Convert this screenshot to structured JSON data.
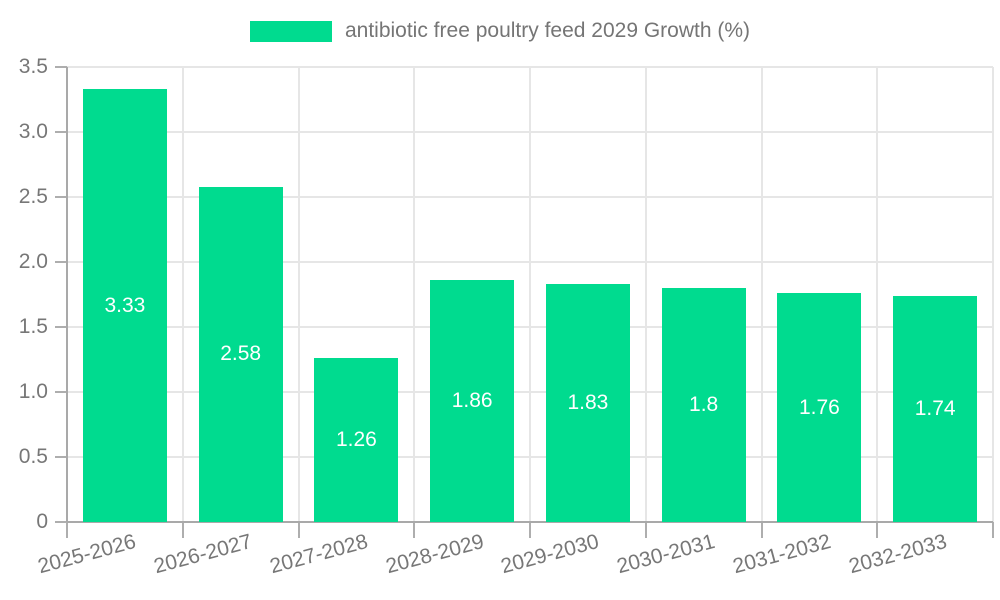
{
  "chart_data": {
    "type": "bar",
    "legend_label": "antibiotic free poultry feed 2029 Growth (%)",
    "legend_position": "top-center",
    "categories": [
      "2025-2026",
      "2026-2027",
      "2027-2028",
      "2028-2029",
      "2029-2030",
      "2030-2031",
      "2031-2032",
      "2032-2033"
    ],
    "values": [
      3.33,
      2.58,
      1.26,
      1.86,
      1.83,
      1.8,
      1.76,
      1.74
    ],
    "value_labels": [
      "3.33",
      "2.58",
      "1.26",
      "1.86",
      "1.83",
      "1.8",
      "1.76",
      "1.74"
    ],
    "value_label_position": "inside-center",
    "ylim": [
      0,
      3.5
    ],
    "ytick_labels": [
      "0",
      "0.5",
      "1.0",
      "1.5",
      "2.0",
      "2.5",
      "3.0",
      "3.5"
    ],
    "grid": true,
    "colors": {
      "bar": "#00db8f",
      "grid": "#e6e6e6",
      "axis": "#a9a9a9",
      "tick": "#aeaeae",
      "tick_label": "#777777",
      "legend_text": "#757575",
      "value_label": "#ffffff",
      "background": "#ffffff"
    }
  }
}
